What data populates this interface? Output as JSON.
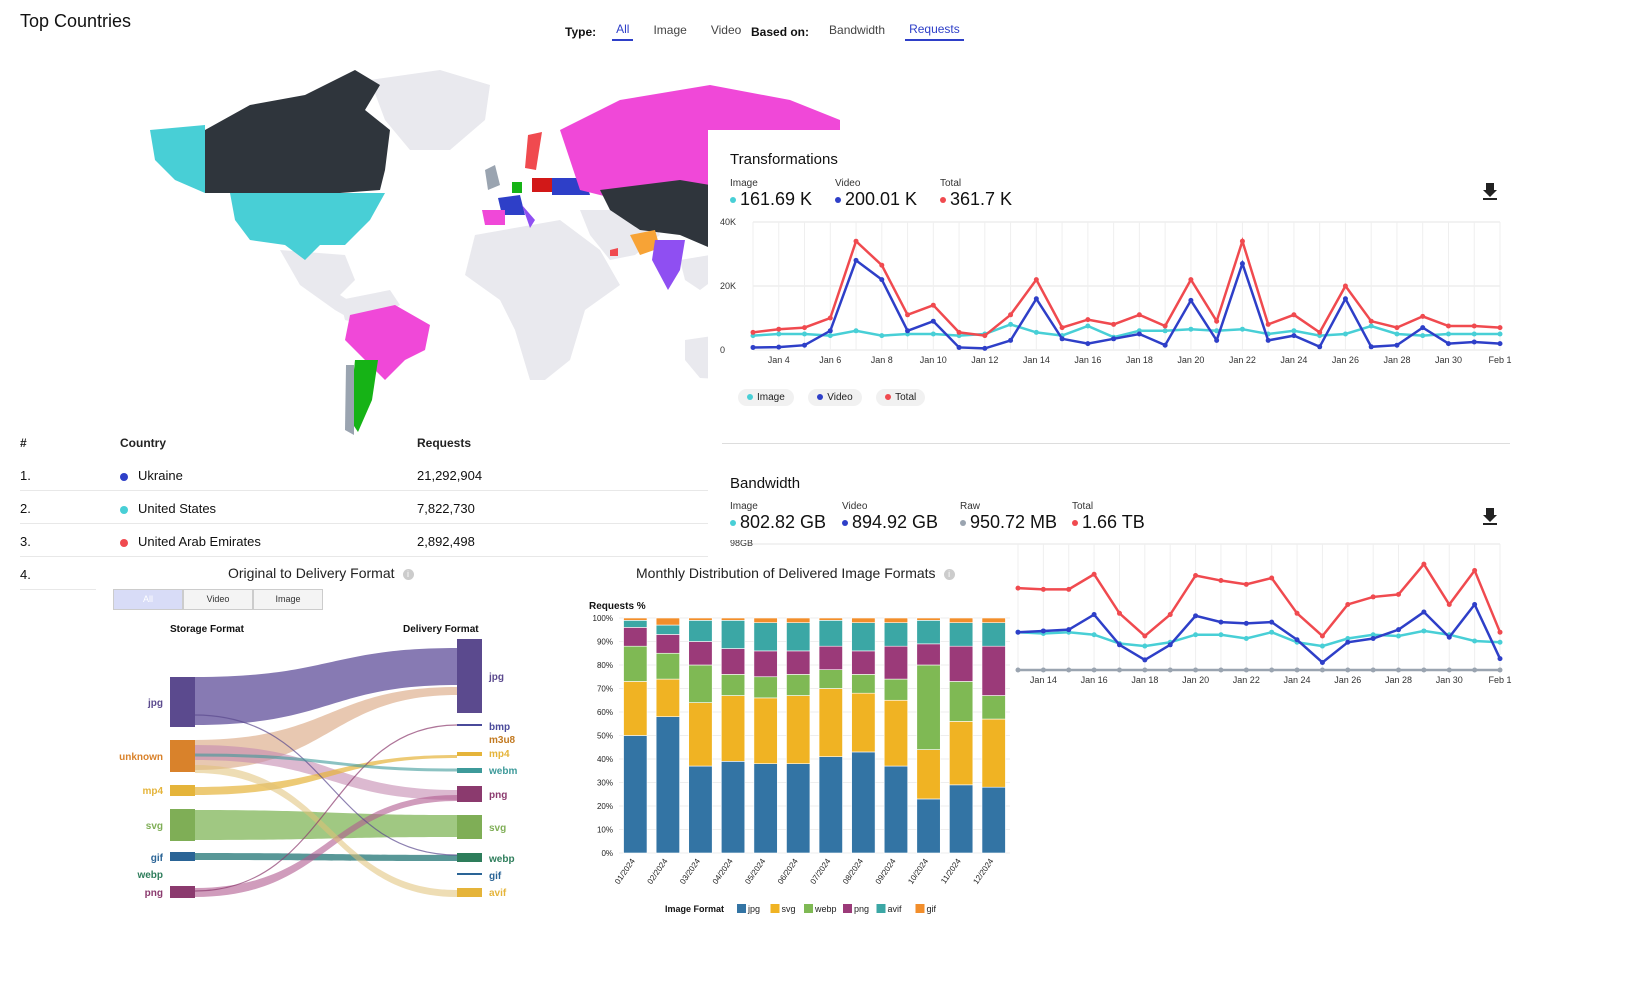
{
  "page": {
    "title": "Top Countries",
    "filters": {
      "type_label": "Type:",
      "type_options": [
        "All",
        "Image",
        "Video"
      ],
      "type_selected": "All",
      "based_on_label": "Based on:",
      "based_on_options": [
        "Bandwidth",
        "Requests"
      ],
      "based_on_selected": "Requests"
    },
    "accent_color": "#2e3fc8"
  },
  "countries_table": {
    "headers": [
      "#",
      "Country",
      "Requests"
    ],
    "rows": [
      {
        "rank": "1.",
        "country": "Ukraine",
        "requests": "21,292,904",
        "color": "#2e3fc8"
      },
      {
        "rank": "2.",
        "country": "United States",
        "requests": "7,822,730",
        "color": "#48cfd6"
      },
      {
        "rank": "3.",
        "country": "United Arab Emirates",
        "requests": "2,892,498",
        "color": "#f04a4f"
      },
      {
        "rank": "4.",
        "country": "",
        "requests": "",
        "color": ""
      }
    ]
  },
  "transformations": {
    "title": "Transformations",
    "stats": [
      {
        "label": "Image",
        "value": "161.69 K",
        "color": "#48cfd6"
      },
      {
        "label": "Video",
        "value": "200.01 K",
        "color": "#2e3fc8"
      },
      {
        "label": "Total",
        "value": "361.7 K",
        "color": "#f04a4f"
      }
    ],
    "legend": [
      "Image",
      "Video",
      "Total"
    ],
    "download_icon": "download-icon"
  },
  "bandwidth": {
    "title": "Bandwidth",
    "stats": [
      {
        "label": "Image",
        "value": "802.82 GB",
        "color": "#48cfd6"
      },
      {
        "label": "Video",
        "value": "894.92 GB",
        "color": "#2e3fc8"
      },
      {
        "label": "Raw",
        "value": "950.72 MB",
        "color": "#9aa4b0"
      },
      {
        "label": "Total",
        "value": "1.66 TB",
        "color": "#f04a4f"
      }
    ],
    "download_icon": "download-icon"
  },
  "sankey": {
    "title": "Original to Delivery Format",
    "tabs": [
      "All",
      "Video",
      "Image"
    ],
    "tab_selected": "All",
    "left_header": "Storage Format",
    "right_header": "Delivery Format",
    "left_nodes": [
      {
        "label": "jpg",
        "color": "#5b4a8e"
      },
      {
        "label": "unknown",
        "color": "#d9822b"
      },
      {
        "label": "mp4",
        "color": "#e5b43a"
      },
      {
        "label": "svg",
        "color": "#7fae56"
      },
      {
        "label": "gif",
        "color": "#2a6496"
      },
      {
        "label": "webp",
        "color": "#2e7d5b"
      },
      {
        "label": "png",
        "color": "#8b3a6e"
      }
    ],
    "right_nodes": [
      {
        "label": "jpg",
        "color": "#5b4a8e"
      },
      {
        "label": "bmp",
        "color": "#4a4a9a"
      },
      {
        "label": "m3u8",
        "color": "#c27a22"
      },
      {
        "label": "mp4",
        "color": "#e5b43a"
      },
      {
        "label": "webm",
        "color": "#3d9a9a"
      },
      {
        "label": "png",
        "color": "#8b3a6e"
      },
      {
        "label": "svg",
        "color": "#7fae56"
      },
      {
        "label": "webp",
        "color": "#2e7d5b"
      },
      {
        "label": "gif",
        "color": "#2a6496"
      },
      {
        "label": "avif",
        "color": "#e5b43a"
      }
    ]
  },
  "stacked": {
    "title": "Monthly Distribution of Delivered Image Formats",
    "legend_title": "Image Format"
  },
  "chart_data": [
    {
      "type": "line",
      "title": "Transformations",
      "x": [
        "Jan 3",
        "Jan 4",
        "Jan 5",
        "Jan 6",
        "Jan 7",
        "Jan 8",
        "Jan 9",
        "Jan 10",
        "Jan 11",
        "Jan 12",
        "Jan 13",
        "Jan 14",
        "Jan 15",
        "Jan 16",
        "Jan 17",
        "Jan 18",
        "Jan 19",
        "Jan 20",
        "Jan 21",
        "Jan 22",
        "Jan 23",
        "Jan 24",
        "Jan 25",
        "Jan 26",
        "Jan 27",
        "Jan 28",
        "Jan 29",
        "Jan 30",
        "Jan 31",
        "Feb 1"
      ],
      "x_ticks": [
        "Jan 4",
        "Jan 6",
        "Jan 8",
        "Jan 10",
        "Jan 12",
        "Jan 14",
        "Jan 16",
        "Jan 18",
        "Jan 20",
        "Jan 22",
        "Jan 24",
        "Jan 26",
        "Jan 28",
        "Jan 30",
        "Feb 1"
      ],
      "y_ticks": [
        "0",
        "20K",
        "40K"
      ],
      "ylim": [
        0,
        40000
      ],
      "series": [
        {
          "name": "Image",
          "color": "#48cfd6",
          "values": [
            4500,
            5000,
            5000,
            4500,
            6000,
            4500,
            5000,
            5000,
            4500,
            5000,
            8000,
            5500,
            4500,
            7500,
            4000,
            6000,
            6000,
            6500,
            6000,
            6500,
            5000,
            6000,
            4500,
            5000,
            7500,
            5000,
            4500,
            5000,
            5000,
            5000
          ]
        },
        {
          "name": "Video",
          "color": "#2e3fc8",
          "values": [
            800,
            900,
            1500,
            6000,
            28000,
            22000,
            6000,
            9000,
            800,
            500,
            3000,
            16000,
            3500,
            2000,
            3500,
            5000,
            1500,
            15500,
            3000,
            27000,
            3000,
            4500,
            1000,
            16000,
            1000,
            1500,
            7000,
            2000,
            2500,
            2000
          ]
        },
        {
          "name": "Total",
          "color": "#f04a4f",
          "values": [
            5500,
            6500,
            7000,
            10000,
            34000,
            26500,
            11000,
            14000,
            5500,
            4500,
            11000,
            22000,
            7000,
            9500,
            8000,
            11000,
            7500,
            22000,
            9000,
            34000,
            8000,
            11000,
            5500,
            20000,
            9000,
            7000,
            10500,
            7500,
            7500,
            7000
          ]
        }
      ]
    },
    {
      "type": "line",
      "title": "Bandwidth",
      "x": [
        "Jan 13",
        "Jan 14",
        "Jan 15",
        "Jan 16",
        "Jan 17",
        "Jan 18",
        "Jan 19",
        "Jan 20",
        "Jan 21",
        "Jan 22",
        "Jan 23",
        "Jan 24",
        "Jan 25",
        "Jan 26",
        "Jan 27",
        "Jan 28",
        "Jan 29",
        "Jan 30",
        "Jan 31",
        "Feb 1"
      ],
      "x_ticks": [
        "Jan 14",
        "Jan 16",
        "Jan 18",
        "Jan 20",
        "Jan 22",
        "Jan 24",
        "Jan 26",
        "Jan 28",
        "Jan 30",
        "Feb 1"
      ],
      "y_ticks": [
        "98GB"
      ],
      "ylim": [
        0,
        100
      ],
      "series": [
        {
          "name": "Image",
          "color": "#48cfd6",
          "values": [
            30,
            29,
            30,
            28,
            21,
            19,
            22,
            28,
            28,
            25,
            30,
            22,
            19,
            25,
            28,
            27,
            31,
            28,
            23,
            22
          ]
        },
        {
          "name": "Video",
          "color": "#2e3fc8",
          "values": [
            30,
            31,
            32,
            44,
            20,
            8,
            20,
            43,
            38,
            37,
            38,
            24,
            6,
            22,
            25,
            32,
            46,
            26,
            52,
            9
          ]
        },
        {
          "name": "Raw",
          "color": "#9aa4b0",
          "values": [
            0,
            0,
            0,
            0,
            0,
            0,
            0,
            0,
            0,
            0,
            0,
            0,
            0,
            0,
            0,
            0,
            0,
            0,
            0,
            0
          ]
        },
        {
          "name": "Total",
          "color": "#f04a4f",
          "values": [
            65,
            64,
            64,
            76,
            45,
            27,
            44,
            75,
            71,
            68,
            73,
            45,
            27,
            52,
            58,
            60,
            84,
            52,
            79,
            30
          ]
        }
      ]
    },
    {
      "type": "bar",
      "title": "Monthly Distribution of Delivered Image Formats",
      "ylabel": "Requests %",
      "y_ticks": [
        "0%",
        "10%",
        "20%",
        "30%",
        "40%",
        "50%",
        "60%",
        "70%",
        "80%",
        "90%",
        "100%"
      ],
      "ylim": [
        0,
        100
      ],
      "stacked": true,
      "categories": [
        "01/2024",
        "02/2024",
        "03/2024",
        "04/2024",
        "05/2024",
        "06/2024",
        "07/2024",
        "08/2024",
        "09/2024",
        "10/2024",
        "11/2024",
        "12/2024"
      ],
      "series": [
        {
          "name": "jpg",
          "color": "#3374a4",
          "values": [
            50,
            58,
            37,
            39,
            38,
            38,
            41,
            43,
            37,
            23,
            29,
            28
          ]
        },
        {
          "name": "svg",
          "color": "#f0b323",
          "values": [
            23,
            16,
            27,
            28,
            28,
            29,
            29,
            25,
            28,
            21,
            27,
            29
          ]
        },
        {
          "name": "webp",
          "color": "#7fb954",
          "values": [
            15,
            11,
            16,
            9,
            9,
            9,
            8,
            8,
            9,
            36,
            17,
            10
          ]
        },
        {
          "name": "png",
          "color": "#9b3a79",
          "values": [
            8,
            8,
            10,
            11,
            11,
            10,
            10,
            10,
            14,
            9,
            15,
            21
          ]
        },
        {
          "name": "avif",
          "color": "#3ba7a5",
          "values": [
            3,
            4,
            9,
            12,
            12,
            12,
            11,
            12,
            10,
            10,
            10,
            10
          ]
        },
        {
          "name": "gif",
          "color": "#f28e2b",
          "values": [
            1,
            3,
            1,
            1,
            2,
            2,
            1,
            2,
            2,
            1,
            2,
            2
          ]
        }
      ]
    }
  ]
}
